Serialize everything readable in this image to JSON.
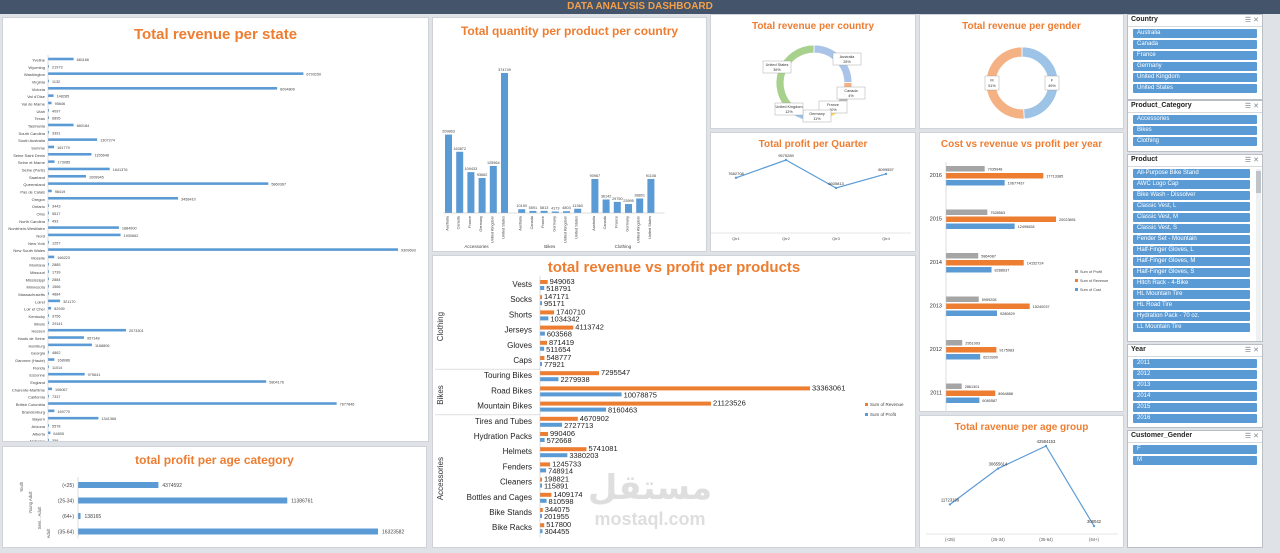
{
  "banner_title": "DATA ANALYSIS DASHBOARD",
  "colors": {
    "accent_orange": "#ed7d31",
    "bar_blue": "#5b9bd5",
    "gray": "#a5a5a5",
    "banner": "#44546a"
  },
  "watermark": {
    "arabic": "مستقل",
    "latin": "mostaql.com"
  },
  "chart_data": [
    {
      "id": "revenue_state",
      "type": "bar",
      "title": "Total revenue per state",
      "categories": [
        "Yveline",
        "Wyoming",
        "Washington",
        "Virginia",
        "Victoria",
        "Val d'Oise",
        "Val de Marne",
        "Utah",
        "Texas",
        "Tasmania",
        "South Carolina",
        "South Australia",
        "Somme",
        "Seine Saint Denis",
        "Seine et Marne",
        "Seine (Paris)",
        "Saarland",
        "Queensland",
        "Pas de Calais",
        "Oregon",
        "Ontario",
        "Ohio",
        "North Carolina",
        "Nordrhein-Westfalen",
        "Nord",
        "New York",
        "New South Wales",
        "Moselle",
        "Montana",
        "Missouri",
        "Mississippi",
        "Minnesota",
        "Massachusetts",
        "Loiret",
        "Loir et Cher",
        "Kentucky",
        "Illinois",
        "Hessen",
        "Hauts de Seine",
        "Hamburg",
        "Georgia",
        "Garonne (Haute)",
        "Florida",
        "Essonne",
        "England",
        "Charente-Maritime",
        "California",
        "British Columbia",
        "Brandenburg",
        "Bayern",
        "Arizona",
        "Alberta",
        "Alabama"
      ],
      "values": [
        681166,
        21973,
        6793150,
        1132,
        6094809,
        148285,
        95646,
        4097,
        6895,
        680184,
        3391,
        1307274,
        161779,
        1155648,
        173085,
        1641376,
        1009945,
        5860367,
        98419,
        3458410,
        3443,
        5517,
        493,
        1884900,
        1930662,
        1257,
        9309693,
        166223,
        2885,
        1739,
        2884,
        1566,
        4884,
        321170,
        82939,
        3756,
        29141,
        2073301,
        957148,
        1168806,
        4862,
        168986,
        11014,
        975641,
        5804176,
        106067,
        7337,
        7677846,
        169770,
        1341366,
        5578,
        64805,
        358
      ]
    },
    {
      "id": "quantity_product_country",
      "type": "bar",
      "title": "Total quantity per product per country",
      "groups": [
        "Accessories",
        "Bikes",
        "Clothing"
      ],
      "countries": [
        "Australia",
        "Canada",
        "France",
        "Germany",
        "United Kingdom",
        "United States"
      ],
      "values": [
        [
          209863,
          163872,
          109433,
          93662,
          125964,
          374749
        ],
        [
          10150,
          5591,
          5813,
          4173,
          4803,
          11360
        ],
        [
          90967,
          36142,
          29750,
          23995,
          38801,
          91108
        ]
      ]
    },
    {
      "id": "revenue_country",
      "type": "pie",
      "title": "Total revenue per country",
      "slices": [
        {
          "label": "Australia",
          "percent": "25%",
          "value": 25
        },
        {
          "label": "Canada",
          "percent": "4%",
          "value": 4
        },
        {
          "label": "France",
          "percent": "10%",
          "value": 10
        },
        {
          "label": "Germany",
          "percent": "11%",
          "value": 11
        },
        {
          "label": "United Kingdom",
          "percent": "12%",
          "value": 12
        },
        {
          "label": "United States",
          "percent": "39%",
          "value": 39
        }
      ]
    },
    {
      "id": "revenue_gender",
      "type": "pie",
      "title": "Total revenue per gender",
      "slices": [
        {
          "label": "F",
          "percent": "49%",
          "value": 49
        },
        {
          "label": "M",
          "percent": "51%",
          "value": 51
        }
      ]
    },
    {
      "id": "profit_quarter",
      "type": "line",
      "title": "Total profit per Quarter",
      "categories": [
        "Qtr1",
        "Qtr2",
        "Qtr3",
        "Qtr4"
      ],
      "values": [
        7682708,
        9575289,
        6605813,
        8099557
      ]
    },
    {
      "id": "cost_revenue_profit_year",
      "type": "bar",
      "title": "Cost vs revenue vs profit per year",
      "categories": [
        "2016",
        "2015",
        "2014",
        "2013",
        "2012",
        "2011"
      ],
      "series": [
        {
          "name": "Sum of Profit",
          "values": [
            7035948,
            7528563,
            5864087,
            5959208,
            2951993,
            2861301
          ]
        },
        {
          "name": "Sum of Revenue",
          "values": [
            17713385,
            20023891,
            14152724,
            15240037,
            9175983,
            8964888
          ]
        },
        {
          "name": "Sum of Cost",
          "values": [
            10677437,
            12495628,
            8288637,
            9280829,
            6223990,
            6080587
          ]
        }
      ]
    },
    {
      "id": "revenue_profit_products",
      "type": "bar",
      "title": "total revenue vs profit per products",
      "groups": [
        {
          "name": "Clothing",
          "products": [
            "Vests",
            "Socks",
            "Shorts",
            "Jerseys",
            "Gloves",
            "Caps"
          ]
        },
        {
          "name": "Bikes",
          "products": [
            "Touring Bikes",
            "Road Bikes",
            "Mountain Bikes"
          ]
        },
        {
          "name": "Accessories",
          "products": [
            "Tires and Tubes",
            "Hydration Packs",
            "Helmets",
            "Fenders",
            "Cleaners",
            "Bottles and Cages",
            "Bike Stands",
            "Bike Racks"
          ]
        }
      ],
      "products": [
        "Vests",
        "Socks",
        "Shorts",
        "Jerseys",
        "Gloves",
        "Caps",
        "Touring Bikes",
        "Road Bikes",
        "Mountain Bikes",
        "Tires and Tubes",
        "Hydration Packs",
        "Helmets",
        "Fenders",
        "Cleaners",
        "Bottles and Cages",
        "Bike Stands",
        "Bike Racks"
      ],
      "series": [
        {
          "name": "Sum of Revenue",
          "values": [
            949063,
            147171,
            1740710,
            4113742,
            871419,
            548777,
            7295547,
            33363061,
            21123526,
            4670902,
            990406,
            5741081,
            1245733,
            198821,
            1409174,
            344075,
            517800
          ]
        },
        {
          "name": "Sum of Profit",
          "values": [
            518791,
            95171,
            1034342,
            603568,
            511654,
            77921,
            2279938,
            10078875,
            8160463,
            2727713,
            572668,
            3380203,
            748914,
            115891,
            810598,
            201955,
            304455
          ]
        }
      ]
    },
    {
      "id": "profit_age_category",
      "type": "bar",
      "title": "total profit per age category",
      "axis_groups": [
        "Youth",
        "Young Adult",
        "Seni... Adult",
        "Adult"
      ],
      "categories": [
        "(<25)",
        "(25-34)",
        "(64+)",
        "(35-64)"
      ],
      "values": [
        4374592,
        11386761,
        138165,
        16323582
      ]
    },
    {
      "id": "revenue_age_group",
      "type": "line",
      "title": "Total ravenue per age group",
      "categories": [
        "(<25)",
        "(25-34)",
        "(35-64)",
        "(64+)"
      ],
      "values": [
        11723199,
        30655614,
        42584153,
        308042
      ]
    }
  ],
  "slicers": {
    "country": {
      "title": "Country",
      "items": [
        "Australia",
        "Canada",
        "France",
        "Germany",
        "United Kingdom",
        "United States"
      ]
    },
    "category": {
      "title": "Product_Category",
      "items": [
        "Accessories",
        "Bikes",
        "Clothing"
      ]
    },
    "product": {
      "title": "Product",
      "items": [
        "All-Purpose Bike Stand",
        "AWC Logo Cap",
        "Bike Wash - Dissolver",
        "Classic Vest, L",
        "Classic Vest, M",
        "Classic Vest, S",
        "Fender Set - Mountain",
        "Half-Finger Gloves, L",
        "Half-Finger Gloves, M",
        "Half-Finger Gloves, S",
        "Hitch Rack - 4-Bike",
        "HL Mountain Tire",
        "HL Road Tire",
        "Hydration Pack - 70 oz.",
        "LL Mountain Tire"
      ]
    },
    "year": {
      "title": "Year",
      "items": [
        "2011",
        "2012",
        "2013",
        "2014",
        "2015",
        "2016"
      ]
    },
    "gender": {
      "title": "Customer_Gender",
      "items": [
        "F",
        "M"
      ]
    }
  }
}
